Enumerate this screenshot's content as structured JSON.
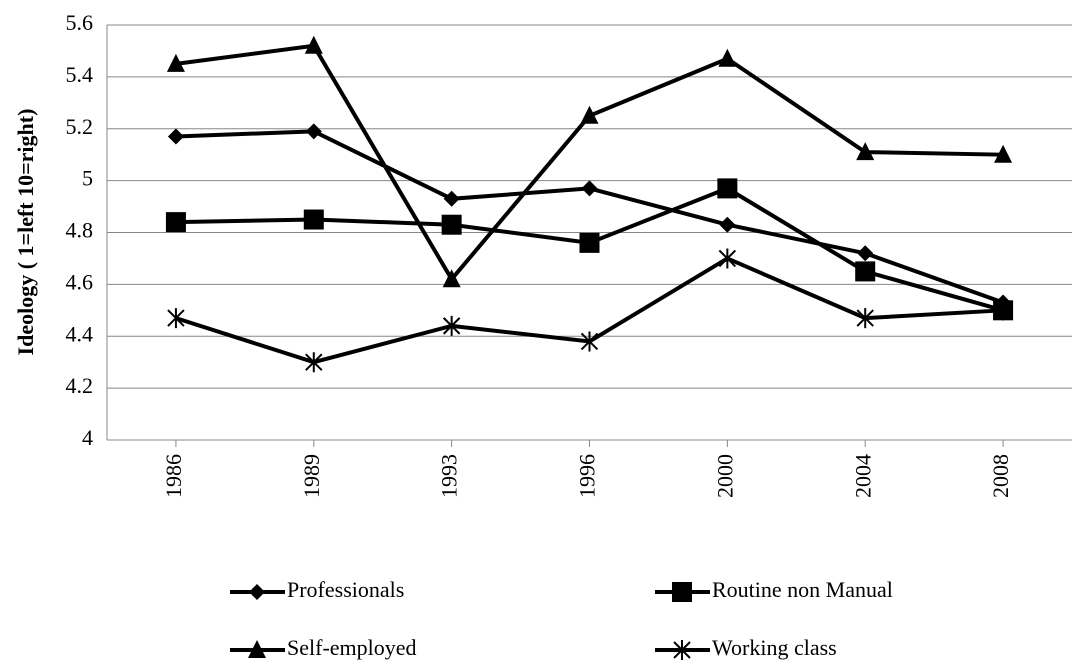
{
  "chart_data": {
    "type": "line",
    "y_label": "Ideology ( 1=left 10=right)",
    "categories": [
      "1986",
      "1989",
      "1993",
      "1996",
      "2000",
      "2004",
      "2008"
    ],
    "series": [
      {
        "name": "Professionals",
        "color": "#000000",
        "marker": "diamond",
        "values": [
          5.17,
          5.19,
          4.93,
          4.97,
          4.83,
          4.72,
          4.53
        ]
      },
      {
        "name": "Routine non Manual",
        "color": "#000000",
        "marker": "square",
        "values": [
          4.84,
          4.85,
          4.83,
          4.76,
          4.97,
          4.65,
          4.5
        ]
      },
      {
        "name": "Self-employed",
        "color": "#000000",
        "marker": "triangle",
        "values": [
          5.45,
          5.52,
          4.62,
          5.25,
          5.47,
          5.11,
          5.1
        ]
      },
      {
        "name": "Working class",
        "color": "#000000",
        "marker": "asterisk",
        "values": [
          4.47,
          4.3,
          4.44,
          4.38,
          4.7,
          4.47,
          4.5
        ]
      }
    ],
    "ylim": [
      4,
      5.6
    ],
    "yticks": [
      4,
      4.2,
      4.4,
      4.6,
      4.8,
      5,
      5.2,
      5.4,
      5.6
    ],
    "grid": true
  }
}
